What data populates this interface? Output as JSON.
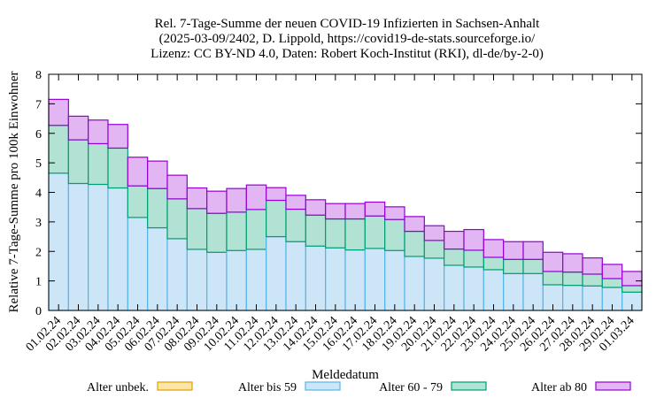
{
  "chart_data": {
    "type": "bar",
    "stacked": true,
    "title": [
      "Rel. 7-Tage-Summe der neuen COVID-19 Infizierten in Sachsen-Anhalt",
      "(2025-03-09/2402, D. Lippold, https://covid19-de-stats.sourceforge.io/",
      "Lizenz: CC BY-ND 4.0, Daten: Robert Koch-Institut (RKI), dl-de/by-2-0)"
    ],
    "xlabel": "Meldedatum",
    "ylabel": "Relative 7-Tage-Summe pro 100k Einwohner",
    "ylim": [
      0,
      8
    ],
    "yticks": [
      "0",
      "1",
      "2",
      "3",
      "4",
      "5",
      "6",
      "7",
      "8"
    ],
    "grid": false,
    "legend_position": "bottom",
    "categories": [
      "01.02.24",
      "02.02.24",
      "03.02.24",
      "04.02.24",
      "05.02.24",
      "06.02.24",
      "07.02.24",
      "08.02.24",
      "09.02.24",
      "10.02.24",
      "11.02.24",
      "12.02.24",
      "13.02.24",
      "14.02.24",
      "15.02.24",
      "16.02.24",
      "17.02.24",
      "18.02.24",
      "19.02.24",
      "20.02.24",
      "21.02.24",
      "22.02.24",
      "23.02.24",
      "24.02.24",
      "25.02.24",
      "26.02.24",
      "27.02.24",
      "28.02.24",
      "29.02.24",
      "01.03.24"
    ],
    "series": [
      {
        "name": "Alter unbek.",
        "fill": "#fde4a8",
        "stroke": "#e0a000",
        "values": [
          0,
          0,
          0,
          0,
          0,
          0,
          0,
          0,
          0,
          0,
          0,
          0,
          0,
          0,
          0,
          0,
          0,
          0,
          0,
          0,
          0,
          0,
          0,
          0,
          0,
          0,
          0,
          0,
          0,
          0
        ]
      },
      {
        "name": "Alter bis 59",
        "fill": "#cde6f7",
        "stroke": "#56b4e9",
        "values": [
          4.65,
          4.3,
          4.27,
          4.15,
          3.15,
          2.8,
          2.43,
          2.07,
          1.97,
          2.03,
          2.07,
          2.5,
          2.33,
          2.18,
          2.12,
          2.05,
          2.1,
          2.03,
          1.83,
          1.77,
          1.53,
          1.47,
          1.38,
          1.25,
          1.25,
          0.87,
          0.85,
          0.83,
          0.78,
          0.62
        ]
      },
      {
        "name": "Alter 60 - 79",
        "fill": "#b2e2d4",
        "stroke": "#009e73",
        "values": [
          1.62,
          1.48,
          1.38,
          1.35,
          1.07,
          1.33,
          1.35,
          1.38,
          1.32,
          1.3,
          1.35,
          1.23,
          1.1,
          1.05,
          0.98,
          1.05,
          1.1,
          1.05,
          0.85,
          0.6,
          0.55,
          0.57,
          0.42,
          0.48,
          0.48,
          0.45,
          0.45,
          0.4,
          0.3,
          0.22
        ]
      },
      {
        "name": "Alter ab 80",
        "fill": "#e2b6f2",
        "stroke": "#9400d3",
        "values": [
          0.88,
          0.8,
          0.8,
          0.8,
          0.97,
          0.93,
          0.8,
          0.7,
          0.75,
          0.8,
          0.83,
          0.43,
          0.47,
          0.52,
          0.52,
          0.52,
          0.47,
          0.43,
          0.5,
          0.5,
          0.6,
          0.7,
          0.6,
          0.6,
          0.6,
          0.65,
          0.62,
          0.55,
          0.48,
          0.48
        ]
      }
    ]
  }
}
